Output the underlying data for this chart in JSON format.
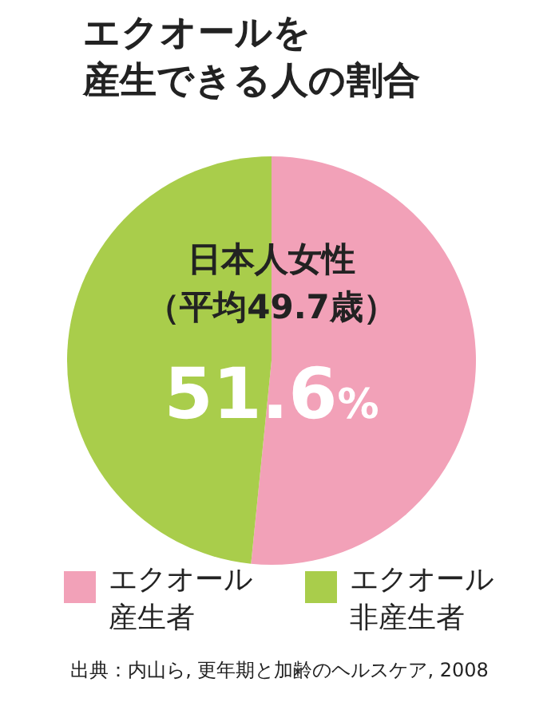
{
  "chart_data": {
    "type": "pie",
    "title": "エクオールを",
    "subtitle": "産生できる人の割合",
    "categories": [
      "エクオール産生者",
      "エクオール非産生者"
    ],
    "values": [
      51.6,
      48.4
    ],
    "colors": [
      "#f2a1b8",
      "#a9cd4b"
    ],
    "value_labels": [
      "51.6%",
      null
    ],
    "annotations": [
      {
        "text": "日本人女性"
      },
      {
        "text": "（平均49.7歳）"
      },
      "出典：内山ら, 更年期と加齢のヘルスケア, 2008"
    ],
    "legend": "bottom"
  }
}
